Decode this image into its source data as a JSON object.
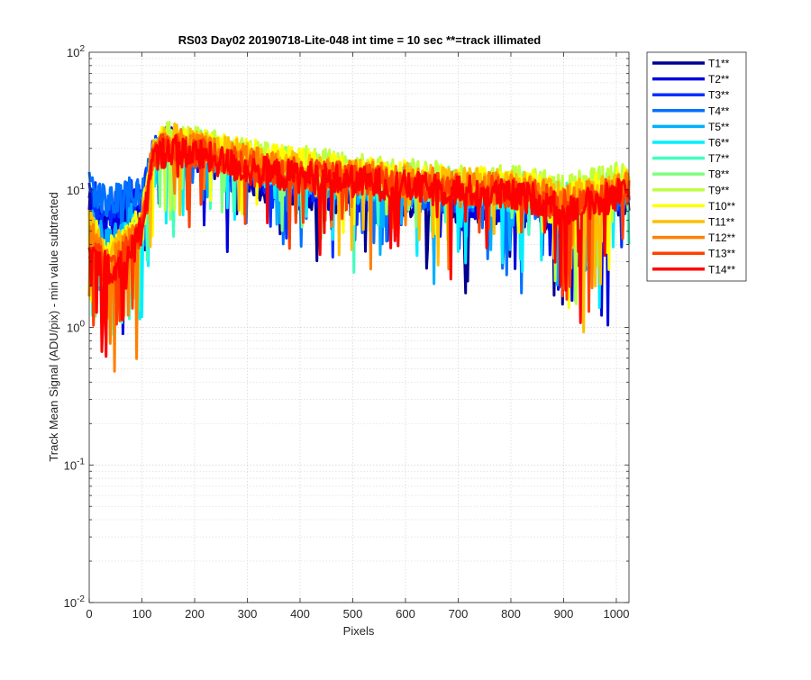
{
  "chart_data": {
    "type": "line",
    "title": "RS03 Day02 20190718-Lite-048 int time = 10 sec    **=track illimated",
    "xlabel": "Pixels",
    "ylabel": "Track Mean Signal (ADU/pix) - min value subtracted",
    "xlim": [
      0,
      1024
    ],
    "ylim": [
      0.01,
      100
    ],
    "yscale": "log",
    "grid": true,
    "legend_position": "outside-top-right",
    "x_ticks": [
      {
        "value": 0,
        "label": "0"
      },
      {
        "value": 100,
        "label": "100"
      },
      {
        "value": 200,
        "label": "200"
      },
      {
        "value": 300,
        "label": "300"
      },
      {
        "value": 400,
        "label": "400"
      },
      {
        "value": 500,
        "label": "500"
      },
      {
        "value": 600,
        "label": "600"
      },
      {
        "value": 700,
        "label": "700"
      },
      {
        "value": 800,
        "label": "800"
      },
      {
        "value": 900,
        "label": "900"
      },
      {
        "value": 1000,
        "label": "1000"
      }
    ],
    "y_ticks": [
      {
        "value": 0.01,
        "base": "10",
        "exp": "-2"
      },
      {
        "value": 0.1,
        "base": "10",
        "exp": "-1"
      },
      {
        "value": 1,
        "base": "10",
        "exp": "0"
      },
      {
        "value": 10,
        "base": "10",
        "exp": "1"
      },
      {
        "value": 100,
        "base": "10",
        "exp": "2"
      }
    ],
    "x": [
      0,
      20,
      40,
      60,
      80,
      100,
      120,
      150,
      200,
      250,
      300,
      350,
      400,
      450,
      500,
      550,
      600,
      650,
      700,
      750,
      800,
      850,
      900,
      950,
      1000,
      1024
    ],
    "series": [
      {
        "name": "T1**",
        "color": "#00008F",
        "values": [
          8,
          6,
          5,
          6,
          7,
          6,
          16,
          20,
          17,
          15,
          12,
          10,
          9.5,
          9,
          8.5,
          8.5,
          8,
          8,
          7.5,
          7.5,
          7,
          7,
          6,
          7,
          8,
          9
        ]
      },
      {
        "name": "T2**",
        "color": "#0000DF",
        "values": [
          9,
          7,
          6,
          7,
          8,
          7,
          17,
          22,
          18,
          15,
          13,
          11,
          10,
          9.5,
          9,
          9,
          8.5,
          8.5,
          8,
          8,
          7.5,
          7.5,
          6.5,
          7.5,
          8.5,
          9
        ]
      },
      {
        "name": "T3**",
        "color": "#0030FF",
        "values": [
          10,
          8,
          7,
          8,
          9,
          8,
          18,
          23,
          19,
          16,
          14,
          12,
          11,
          10.5,
          10,
          10,
          9,
          9,
          8.5,
          8.5,
          8,
          8,
          7,
          8,
          9,
          10
        ]
      },
      {
        "name": "T4**",
        "color": "#0070FF",
        "values": [
          11,
          9,
          8,
          9,
          10,
          9,
          18,
          22,
          19,
          17,
          15,
          13,
          12,
          11,
          10.5,
          10,
          9.5,
          9.5,
          9,
          9,
          8.5,
          8,
          7,
          8,
          9,
          10
        ]
      },
      {
        "name": "T5**",
        "color": "#00AFFF",
        "values": [
          7,
          5,
          4,
          5,
          6,
          6,
          17,
          21,
          19,
          17,
          15,
          13.5,
          12.5,
          11.5,
          11,
          10.5,
          10,
          10,
          9.5,
          9,
          9,
          8.5,
          7.5,
          8.5,
          9.5,
          10
        ]
      },
      {
        "name": "T6**",
        "color": "#00EFFF",
        "values": [
          6,
          4,
          3,
          4,
          5,
          5,
          16,
          21,
          19,
          17,
          16,
          14,
          13,
          12,
          11.5,
          11,
          10.5,
          10,
          10,
          9.5,
          9,
          9,
          8,
          9,
          10,
          10.5
        ]
      },
      {
        "name": "T7**",
        "color": "#40FFBF",
        "values": [
          5,
          3,
          2.5,
          3,
          4,
          5,
          16,
          21,
          20,
          18,
          16,
          15,
          14,
          13,
          12,
          11.5,
          11,
          10.5,
          10.5,
          10,
          9.5,
          9.5,
          8.5,
          9.5,
          10.5,
          11
        ]
      },
      {
        "name": "T8**",
        "color": "#80FF80",
        "values": [
          5,
          3,
          2.5,
          3,
          4,
          5,
          17,
          22,
          21,
          19,
          17,
          16,
          15,
          14,
          13,
          12.5,
          12,
          11.5,
          11,
          11,
          10.5,
          10,
          9,
          10,
          11,
          12
        ]
      },
      {
        "name": "T9**",
        "color": "#BFFF40",
        "values": [
          5,
          3.5,
          3,
          3.5,
          4.5,
          5,
          18,
          24,
          22,
          20,
          18,
          17,
          16,
          15,
          14,
          13.5,
          13,
          12.5,
          12,
          12,
          11.5,
          11,
          10,
          11,
          12,
          13
        ]
      },
      {
        "name": "T10**",
        "color": "#FFFF00",
        "values": [
          6,
          4,
          3.5,
          4,
          5,
          6,
          19,
          25,
          22,
          20,
          18,
          16.5,
          15.5,
          14.5,
          13.5,
          13,
          12.5,
          12,
          11.5,
          11.5,
          11,
          10.5,
          9,
          10,
          11,
          12
        ]
      },
      {
        "name": "T11**",
        "color": "#FFBF00",
        "values": [
          6,
          4,
          3.5,
          4,
          5,
          6,
          19,
          24,
          21,
          19,
          17,
          15.5,
          14.5,
          13.5,
          13,
          12.5,
          12,
          11.5,
          11,
          11,
          10.5,
          10,
          8.5,
          9.5,
          10.5,
          11
        ]
      },
      {
        "name": "T12**",
        "color": "#FF8000",
        "values": [
          5,
          3.5,
          3,
          3.5,
          4.5,
          5,
          18,
          22,
          20,
          18,
          16,
          14.5,
          13.5,
          13,
          12.5,
          12,
          11.5,
          11,
          10.5,
          10.5,
          10,
          9.5,
          8,
          9,
          10,
          10.5
        ]
      },
      {
        "name": "T13**",
        "color": "#FF4000",
        "values": [
          4,
          3,
          2.5,
          3,
          4,
          5,
          17,
          21,
          19,
          17,
          15,
          13.5,
          13,
          12.5,
          12,
          11.5,
          11,
          10.5,
          10,
          10,
          9.5,
          9,
          7.5,
          8.5,
          9.5,
          10
        ]
      },
      {
        "name": "T14**",
        "color": "#FF0000",
        "values": [
          4,
          3,
          2.5,
          3,
          3.5,
          5,
          16,
          20,
          18,
          16,
          14,
          13,
          12.5,
          12,
          11.5,
          11,
          10.5,
          10,
          10,
          9.5,
          9,
          8.5,
          7,
          8,
          9,
          9.5
        ]
      }
    ]
  }
}
